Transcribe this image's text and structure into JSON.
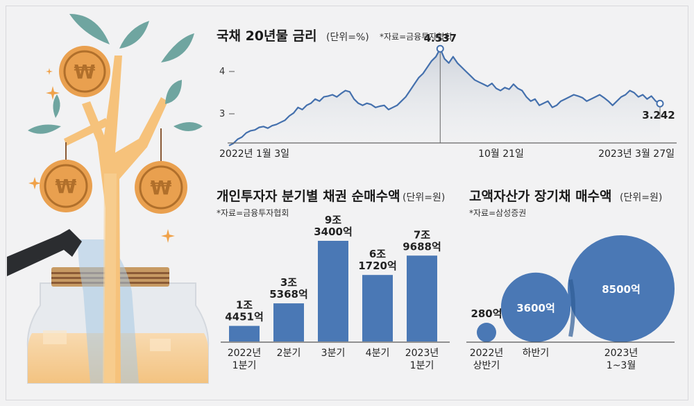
{
  "colors": {
    "accent_blue": "#4a78b5",
    "dark_blue": "#2f5d96",
    "line": "#4470ad",
    "coin": "#e9a04f",
    "leaf": "#6fa5a0",
    "trunk": "#f6c27b"
  },
  "icons": [
    "coin-icon",
    "leaf-icon",
    "sparkle-icon",
    "watering-can-icon",
    "glass-jar-icon"
  ],
  "chart_data": [
    {
      "type": "line",
      "title": "국채 20년물 금리",
      "unit": "(단위=%)",
      "source": "*자료=금융투자협회",
      "x_labels": [
        "2022년 1월 3일",
        "10월 21일",
        "2023년 3월 27일"
      ],
      "y_ticks": [
        "4",
        "3"
      ],
      "y_tick_values": [
        4,
        3
      ],
      "ylim": [
        2.3,
        4.75
      ],
      "annotations": [
        {
          "label": "4.537",
          "date": "10월 21일",
          "value": 4.537
        },
        {
          "label": "3.242",
          "date": "2023년 3월 27일",
          "value": 3.242
        }
      ],
      "series": [
        {
          "x": [
            0.0,
            0.01,
            0.02,
            0.03,
            0.04,
            0.05,
            0.06,
            0.07,
            0.08,
            0.09,
            0.1,
            0.11,
            0.12,
            0.13,
            0.14,
            0.15,
            0.16,
            0.17,
            0.18,
            0.19,
            0.2,
            0.21,
            0.22,
            0.23,
            0.24,
            0.25,
            0.26,
            0.27,
            0.28,
            0.29,
            0.3,
            0.31,
            0.32,
            0.33,
            0.34,
            0.35,
            0.36,
            0.37,
            0.38,
            0.39,
            0.4,
            0.41,
            0.42,
            0.43,
            0.44,
            0.45,
            0.46,
            0.47,
            0.48,
            0.49,
            0.5,
            0.51,
            0.52,
            0.53,
            0.54,
            0.55,
            0.56,
            0.57,
            0.58,
            0.59,
            0.6,
            0.61,
            0.62,
            0.63,
            0.64,
            0.65,
            0.66,
            0.67,
            0.68,
            0.69,
            0.7,
            0.71,
            0.72,
            0.73,
            0.74,
            0.75,
            0.76,
            0.77,
            0.78,
            0.79,
            0.8,
            0.81,
            0.82,
            0.83,
            0.84,
            0.85,
            0.86,
            0.87,
            0.88,
            0.89,
            0.9,
            0.91,
            0.92,
            0.93,
            0.94,
            0.95,
            0.96,
            0.97,
            0.98,
            0.99,
            1.0
          ],
          "values": [
            2.25,
            2.3,
            2.4,
            2.45,
            2.55,
            2.6,
            2.62,
            2.68,
            2.7,
            2.66,
            2.72,
            2.75,
            2.8,
            2.85,
            2.95,
            3.02,
            3.15,
            3.1,
            3.2,
            3.25,
            3.35,
            3.3,
            3.4,
            3.42,
            3.45,
            3.4,
            3.48,
            3.55,
            3.52,
            3.35,
            3.25,
            3.2,
            3.25,
            3.22,
            3.15,
            3.18,
            3.2,
            3.1,
            3.15,
            3.2,
            3.3,
            3.4,
            3.55,
            3.7,
            3.85,
            3.95,
            4.1,
            4.25,
            4.35,
            4.537,
            4.3,
            4.2,
            4.35,
            4.2,
            4.1,
            4.0,
            3.9,
            3.8,
            3.75,
            3.7,
            3.65,
            3.72,
            3.6,
            3.55,
            3.62,
            3.58,
            3.7,
            3.6,
            3.55,
            3.4,
            3.3,
            3.35,
            3.2,
            3.25,
            3.3,
            3.15,
            3.2,
            3.3,
            3.35,
            3.4,
            3.45,
            3.42,
            3.38,
            3.3,
            3.35,
            3.4,
            3.45,
            3.38,
            3.3,
            3.2,
            3.3,
            3.4,
            3.45,
            3.55,
            3.5,
            3.4,
            3.45,
            3.35,
            3.42,
            3.3,
            3.242
          ]
        }
      ]
    },
    {
      "type": "bar",
      "title": "개인투자자 분기별 채권 순매수액",
      "unit": "(단위=원)",
      "source": "*자료=금융투자협회",
      "categories": [
        [
          "2022년",
          "1분기"
        ],
        [
          "2분기"
        ],
        [
          "3분기"
        ],
        [
          "4분기"
        ],
        [
          "2023년",
          "1분기"
        ]
      ],
      "values": [
        14451,
        35368,
        93400,
        61720,
        79688
      ],
      "value_labels": [
        [
          "1조",
          "4451억"
        ],
        [
          "3조",
          "5368억"
        ],
        [
          "9조",
          "3400억"
        ],
        [
          "6조",
          "1720억"
        ],
        [
          "7조",
          "9688억"
        ]
      ]
    },
    {
      "type": "bubble",
      "title": "고액자산가 장기채 매수액",
      "unit": "(단위=원)",
      "source": "*자료=삼성증권",
      "categories": [
        [
          "2022년",
          "상반기"
        ],
        [
          "하반기"
        ],
        [
          "2023년",
          "1~3월"
        ]
      ],
      "values": [
        280,
        3600,
        8500
      ],
      "value_labels": [
        "280억",
        "3600억",
        "8500억"
      ]
    }
  ]
}
